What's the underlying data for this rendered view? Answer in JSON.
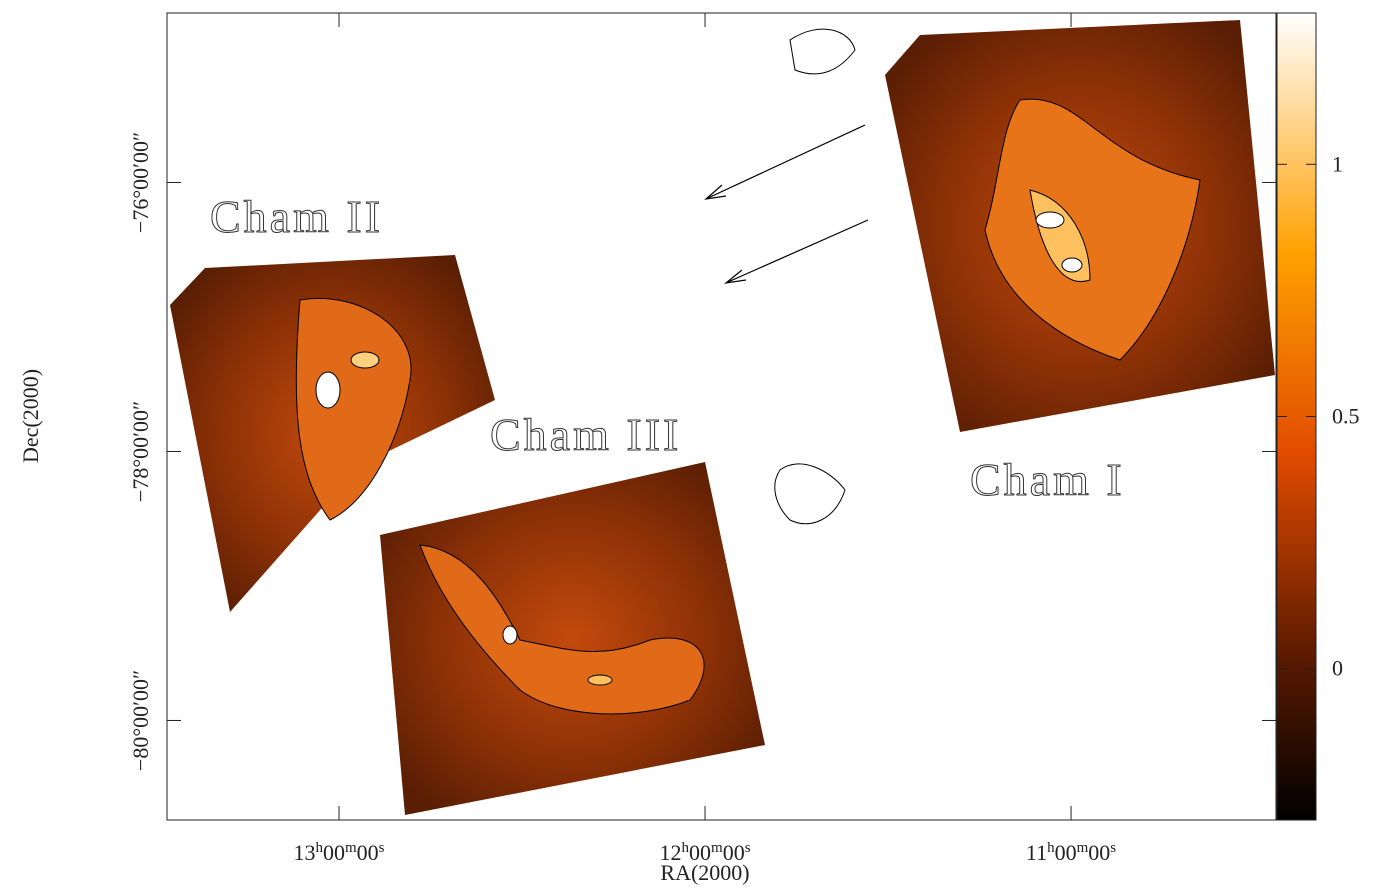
{
  "chart_data": {
    "type": "image",
    "xlabel": "RA(2000)",
    "ylabel": "Dec(2000)",
    "xlim": [
      13.47,
      10.44
    ],
    "ylim": [
      -74.74,
      -80.74
    ],
    "xticks": [
      {
        "value": 13,
        "label": "13h00m00s"
      },
      {
        "value": 12,
        "label": "12h00m00s"
      },
      {
        "value": 11,
        "label": "11h00m00s"
      }
    ],
    "yticks": [
      {
        "value": -76,
        "label": "−76°00′00″"
      },
      {
        "value": -78,
        "label": "−78°00′00″"
      },
      {
        "value": -80,
        "label": "−80°00′00″"
      }
    ],
    "colorbar": {
      "lim": [
        -0.3,
        1.3
      ],
      "ticks": [
        0,
        0.5,
        1
      ]
    },
    "annotations": [
      "Cham II",
      "Cham III",
      "Cham I"
    ]
  }
}
